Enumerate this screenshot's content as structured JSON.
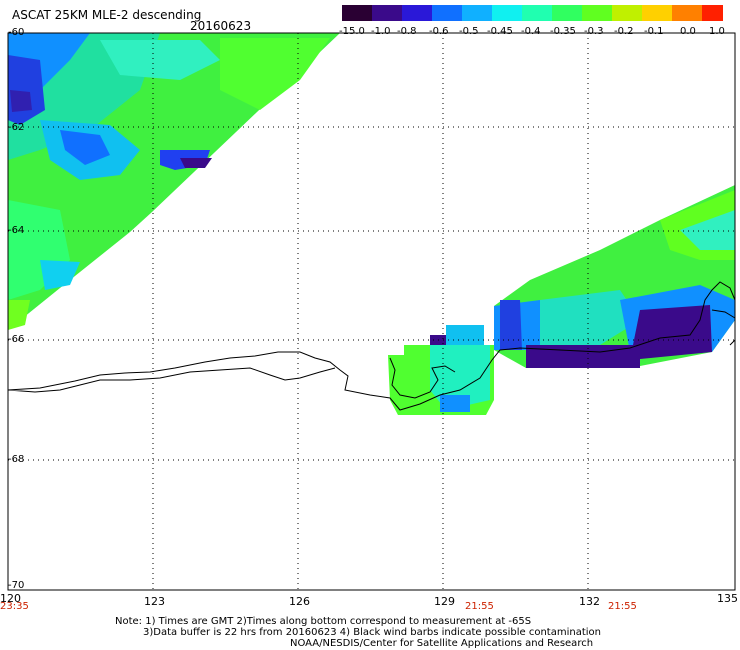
{
  "title": "ASCAT 25KM MLE-2 descending",
  "date": "20160623",
  "colorbar": {
    "labels": [
      "-15.0",
      "-1.0",
      "-0.8",
      "-0.6",
      "-0.5",
      "-0.45",
      "-0.4",
      "-0.35",
      "-0.3",
      "-0.2",
      "-0.1",
      "0.0",
      "1.0"
    ],
    "colors": [
      "#2a0033",
      "#3a0a8a",
      "#2a18d8",
      "#1070ff",
      "#10b0ff",
      "#10f0f0",
      "#20ffb0",
      "#30ff60",
      "#60ff20",
      "#c0f000",
      "#ffd000",
      "#ff8000",
      "#ff2000"
    ]
  },
  "y_axis": {
    "labels": [
      "-60",
      "-62",
      "-64",
      "-66",
      "-68",
      "-70"
    ]
  },
  "x_axis": {
    "labels": [
      "120",
      "123",
      "126",
      "129",
      "132",
      "135"
    ]
  },
  "times": [
    "23:35",
    "21:55",
    "21:55"
  ],
  "note": {
    "line1": "Note: 1) Times are GMT 2)Times along bottom correspond to measurement at -65S",
    "line2": "3)Data buffer is 22 hrs from 20160623 4) Black wind barbs indicate possible contamination",
    "line3": "NOAA/NESDIS/Center for Satellite Applications and Research"
  }
}
